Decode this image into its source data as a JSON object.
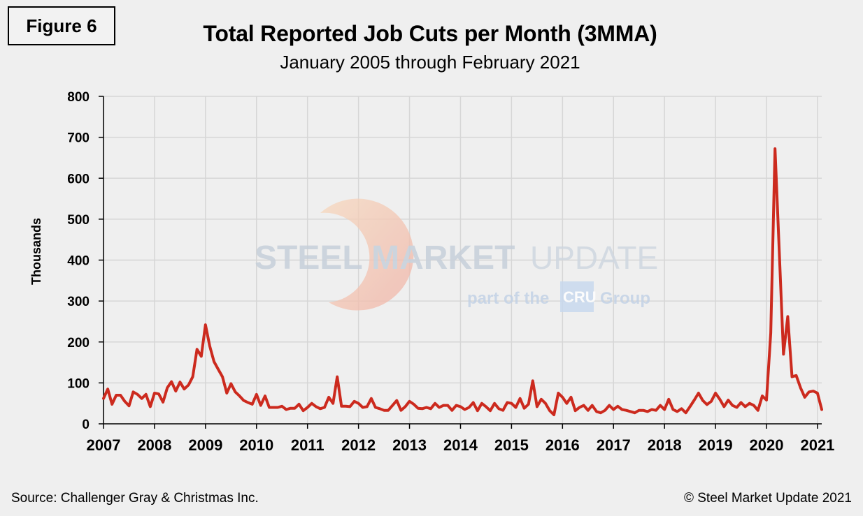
{
  "figure_label": "Figure 6",
  "footer": {
    "source": "Source: Challenger Gray & Christmas Inc.",
    "copyright": "© Steel Market Update 2021"
  },
  "watermark": {
    "brand_bold": "STEEL MARKET",
    "brand_light": "UPDATE",
    "tagline_pre": "part of the",
    "tagline_logo": "CRU",
    "tagline_post": "Group"
  },
  "colors": {
    "line": "#cc2a1e",
    "grid": "#d6d6d6",
    "background": "#efefef"
  },
  "chart_data": {
    "type": "line",
    "title": "Total Reported Job Cuts per Month (3MMA)",
    "subtitle": "January 2005 through February 2021",
    "xlabel": "",
    "ylabel": "Thousands",
    "ylim": [
      0,
      800
    ],
    "yticks": [
      0,
      100,
      200,
      300,
      400,
      500,
      600,
      700,
      800
    ],
    "xlim": [
      2007.0,
      2021.083
    ],
    "xticks": [
      "2007",
      "2008",
      "2009",
      "2010",
      "2011",
      "2012",
      "2013",
      "2014",
      "2015",
      "2016",
      "2017",
      "2018",
      "2019",
      "2020",
      "2021"
    ],
    "grid": true,
    "series": [
      {
        "name": "Job Cuts (3MMA)",
        "x": [
          2007.0,
          2007.083,
          2007.167,
          2007.25,
          2007.333,
          2007.417,
          2007.5,
          2007.583,
          2007.667,
          2007.75,
          2007.833,
          2007.917,
          2008.0,
          2008.083,
          2008.167,
          2008.25,
          2008.333,
          2008.417,
          2008.5,
          2008.583,
          2008.667,
          2008.75,
          2008.833,
          2008.917,
          2009.0,
          2009.083,
          2009.167,
          2009.25,
          2009.333,
          2009.417,
          2009.5,
          2009.583,
          2009.667,
          2009.75,
          2009.833,
          2009.917,
          2010.0,
          2010.083,
          2010.167,
          2010.25,
          2010.333,
          2010.417,
          2010.5,
          2010.583,
          2010.667,
          2010.75,
          2010.833,
          2010.917,
          2011.0,
          2011.083,
          2011.167,
          2011.25,
          2011.333,
          2011.417,
          2011.5,
          2011.583,
          2011.667,
          2011.75,
          2011.833,
          2011.917,
          2012.0,
          2012.083,
          2012.167,
          2012.25,
          2012.333,
          2012.417,
          2012.5,
          2012.583,
          2012.667,
          2012.75,
          2012.833,
          2012.917,
          2013.0,
          2013.083,
          2013.167,
          2013.25,
          2013.333,
          2013.417,
          2013.5,
          2013.583,
          2013.667,
          2013.75,
          2013.833,
          2013.917,
          2014.0,
          2014.083,
          2014.167,
          2014.25,
          2014.333,
          2014.417,
          2014.5,
          2014.583,
          2014.667,
          2014.75,
          2014.833,
          2014.917,
          2015.0,
          2015.083,
          2015.167,
          2015.25,
          2015.333,
          2015.417,
          2015.5,
          2015.583,
          2015.667,
          2015.75,
          2015.833,
          2015.917,
          2016.0,
          2016.083,
          2016.167,
          2016.25,
          2016.333,
          2016.417,
          2016.5,
          2016.583,
          2016.667,
          2016.75,
          2016.833,
          2016.917,
          2017.0,
          2017.083,
          2017.167,
          2017.25,
          2017.333,
          2017.417,
          2017.5,
          2017.583,
          2017.667,
          2017.75,
          2017.833,
          2017.917,
          2018.0,
          2018.083,
          2018.167,
          2018.25,
          2018.333,
          2018.417,
          2018.5,
          2018.583,
          2018.667,
          2018.75,
          2018.833,
          2018.917,
          2019.0,
          2019.083,
          2019.167,
          2019.25,
          2019.333,
          2019.417,
          2019.5,
          2019.583,
          2019.667,
          2019.75,
          2019.833,
          2019.917,
          2020.0,
          2020.083,
          2020.167,
          2020.25,
          2020.333,
          2020.417,
          2020.5,
          2020.583,
          2020.667,
          2020.75,
          2020.833,
          2020.917,
          2021.0,
          2021.083
        ],
        "values": [
          62,
          85,
          48,
          70,
          70,
          55,
          44,
          78,
          72,
          62,
          72,
          42,
          75,
          73,
          53,
          88,
          103,
          80,
          102,
          85,
          95,
          115,
          182,
          165,
          242,
          190,
          152,
          133,
          115,
          75,
          98,
          78,
          68,
          57,
          52,
          48,
          72,
          45,
          68,
          40,
          40,
          40,
          43,
          35,
          38,
          38,
          48,
          32,
          40,
          50,
          42,
          37,
          40,
          65,
          50,
          115,
          43,
          43,
          42,
          55,
          50,
          40,
          42,
          62,
          40,
          37,
          33,
          33,
          45,
          57,
          33,
          42,
          55,
          48,
          38,
          37,
          40,
          37,
          50,
          40,
          45,
          45,
          33,
          45,
          42,
          35,
          40,
          52,
          32,
          50,
          42,
          32,
          50,
          37,
          33,
          52,
          50,
          40,
          62,
          38,
          48,
          105,
          42,
          60,
          50,
          32,
          22,
          75,
          65,
          50,
          65,
          32,
          40,
          45,
          33,
          45,
          30,
          27,
          33,
          45,
          35,
          43,
          35,
          33,
          30,
          27,
          33,
          33,
          30,
          35,
          33,
          45,
          35,
          60,
          35,
          30,
          37,
          27,
          42,
          58,
          75,
          57,
          47,
          55,
          75,
          60,
          42,
          58,
          45,
          40,
          52,
          42,
          50,
          45,
          33,
          68,
          58,
          222,
          672,
          420,
          170,
          262,
          115,
          118,
          88,
          65,
          78,
          80,
          75,
          35
        ]
      }
    ]
  }
}
